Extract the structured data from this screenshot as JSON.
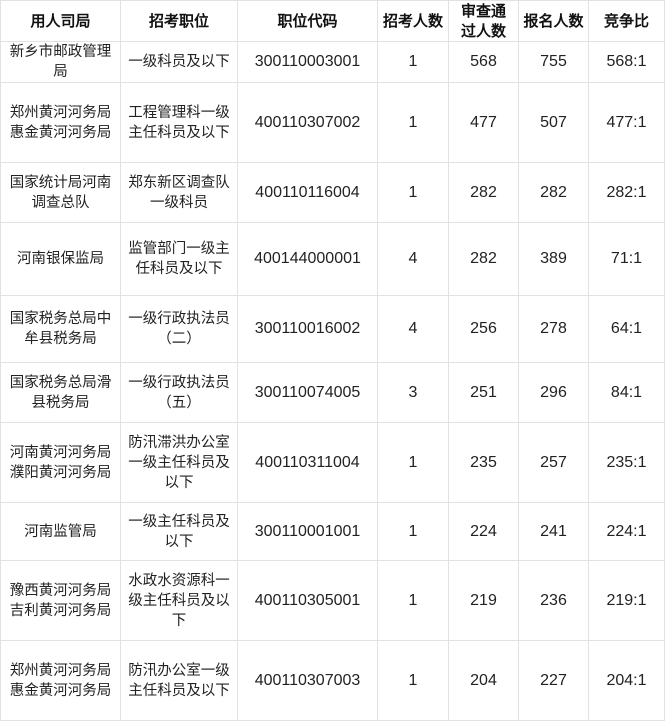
{
  "headers": [
    "用人司局",
    "招考职位",
    "职位代码",
    "招考人数",
    "审查通过人数",
    "报名人数",
    "竞争比"
  ],
  "rows": [
    {
      "dept": "新乡市邮政管理局",
      "position": "一级科员及以下",
      "code": "300110003001",
      "quota": "1",
      "passed": "568",
      "applied": "755",
      "ratio": "568:1"
    },
    {
      "dept": "郑州黄河河务局惠金黄河河务局",
      "position": "工程管理科一级主任科员及以下",
      "code": "400110307002",
      "quota": "1",
      "passed": "477",
      "applied": "507",
      "ratio": "477:1"
    },
    {
      "dept": "国家统计局河南调查总队",
      "position": "郑东新区调查队一级科员",
      "code": "400110116004",
      "quota": "1",
      "passed": "282",
      "applied": "282",
      "ratio": "282:1"
    },
    {
      "dept": "河南银保监局",
      "position": "监管部门一级主任科员及以下",
      "code": "400144000001",
      "quota": "4",
      "passed": "282",
      "applied": "389",
      "ratio": "71:1"
    },
    {
      "dept": "国家税务总局中牟县税务局",
      "position": "一级行政执法员（二）",
      "code": "300110016002",
      "quota": "4",
      "passed": "256",
      "applied": "278",
      "ratio": "64:1"
    },
    {
      "dept": "国家税务总局滑县税务局",
      "position": "一级行政执法员（五）",
      "code": "300110074005",
      "quota": "3",
      "passed": "251",
      "applied": "296",
      "ratio": "84:1"
    },
    {
      "dept": "河南黄河河务局濮阳黄河河务局",
      "position": "防汛滞洪办公室一级主任科员及以下",
      "code": "400110311004",
      "quota": "1",
      "passed": "235",
      "applied": "257",
      "ratio": "235:1"
    },
    {
      "dept": "河南监管局",
      "position": "一级主任科员及以下",
      "code": "300110001001",
      "quota": "1",
      "passed": "224",
      "applied": "241",
      "ratio": "224:1"
    },
    {
      "dept": "豫西黄河河务局吉利黄河河务局",
      "position": "水政水资源科一级主任科员及以下",
      "code": "400110305001",
      "quota": "1",
      "passed": "219",
      "applied": "236",
      "ratio": "219:1"
    },
    {
      "dept": "郑州黄河河务局惠金黄河河务局",
      "position": "防汛办公室一级主任科员及以下",
      "code": "400110307003",
      "quota": "1",
      "passed": "204",
      "applied": "227",
      "ratio": "204:1"
    }
  ]
}
